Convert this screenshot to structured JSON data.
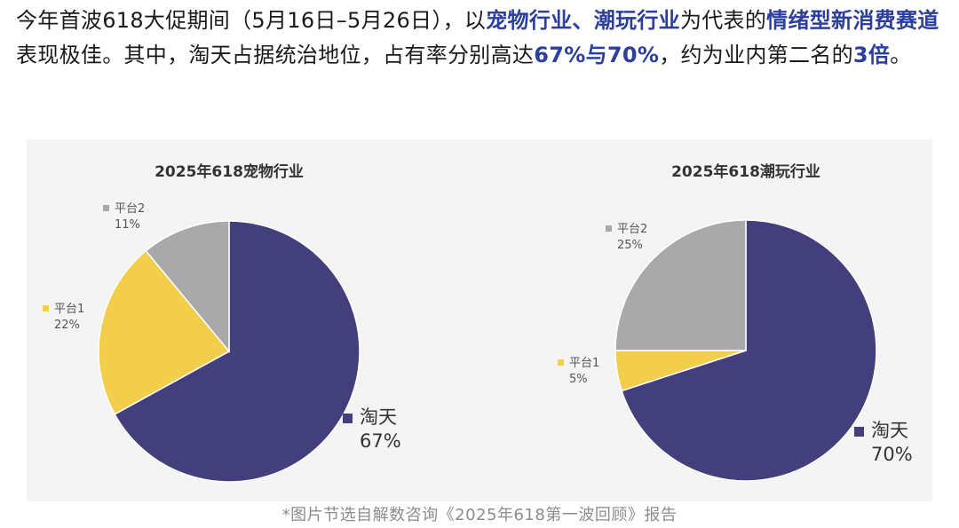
{
  "paragraph": {
    "segments": [
      {
        "text": "今年首波618大促期间（5月16日–5月26日），以",
        "highlight": false
      },
      {
        "text": "宠物行业、潮玩行业",
        "highlight": true
      },
      {
        "text": "为代表的",
        "highlight": false
      },
      {
        "text": "情绪型新消费赛道",
        "highlight": true
      },
      {
        "text": "表现极佳。其中，淘天占据统治地位，占有率分别高达",
        "highlight": false
      },
      {
        "text": "67%与70%",
        "highlight": true
      },
      {
        "text": "，约为业内第二名的",
        "highlight": false
      },
      {
        "text": "3倍",
        "highlight": true
      },
      {
        "text": "。",
        "highlight": false
      }
    ]
  },
  "caption": "*图片节选自解数咨询《2025年618第一波回顾》报告",
  "colors": {
    "highlight": "#2c3f9c",
    "taotian": "#433f7c",
    "platform1": "#f2ce4b",
    "platform2": "#a9a9a9",
    "figure_bg": "#f4f4f4"
  },
  "chart_data": [
    {
      "type": "pie",
      "title": "2025年618宠物行业",
      "slices": [
        {
          "label": "淘天",
          "value": 67,
          "value_text": "67%"
        },
        {
          "label": "平台1",
          "value": 22,
          "value_text": "22%"
        },
        {
          "label": "平台2",
          "value": 11,
          "value_text": "11%"
        }
      ],
      "start": "12 o'clock",
      "direction": "clockwise"
    },
    {
      "type": "pie",
      "title": "2025年618潮玩行业",
      "slices": [
        {
          "label": "淘天",
          "value": 70,
          "value_text": "70%"
        },
        {
          "label": "平台1",
          "value": 5,
          "value_text": "5%"
        },
        {
          "label": "平台2",
          "value": 25,
          "value_text": "25%"
        }
      ],
      "start": "12 o'clock",
      "direction": "clockwise"
    }
  ]
}
